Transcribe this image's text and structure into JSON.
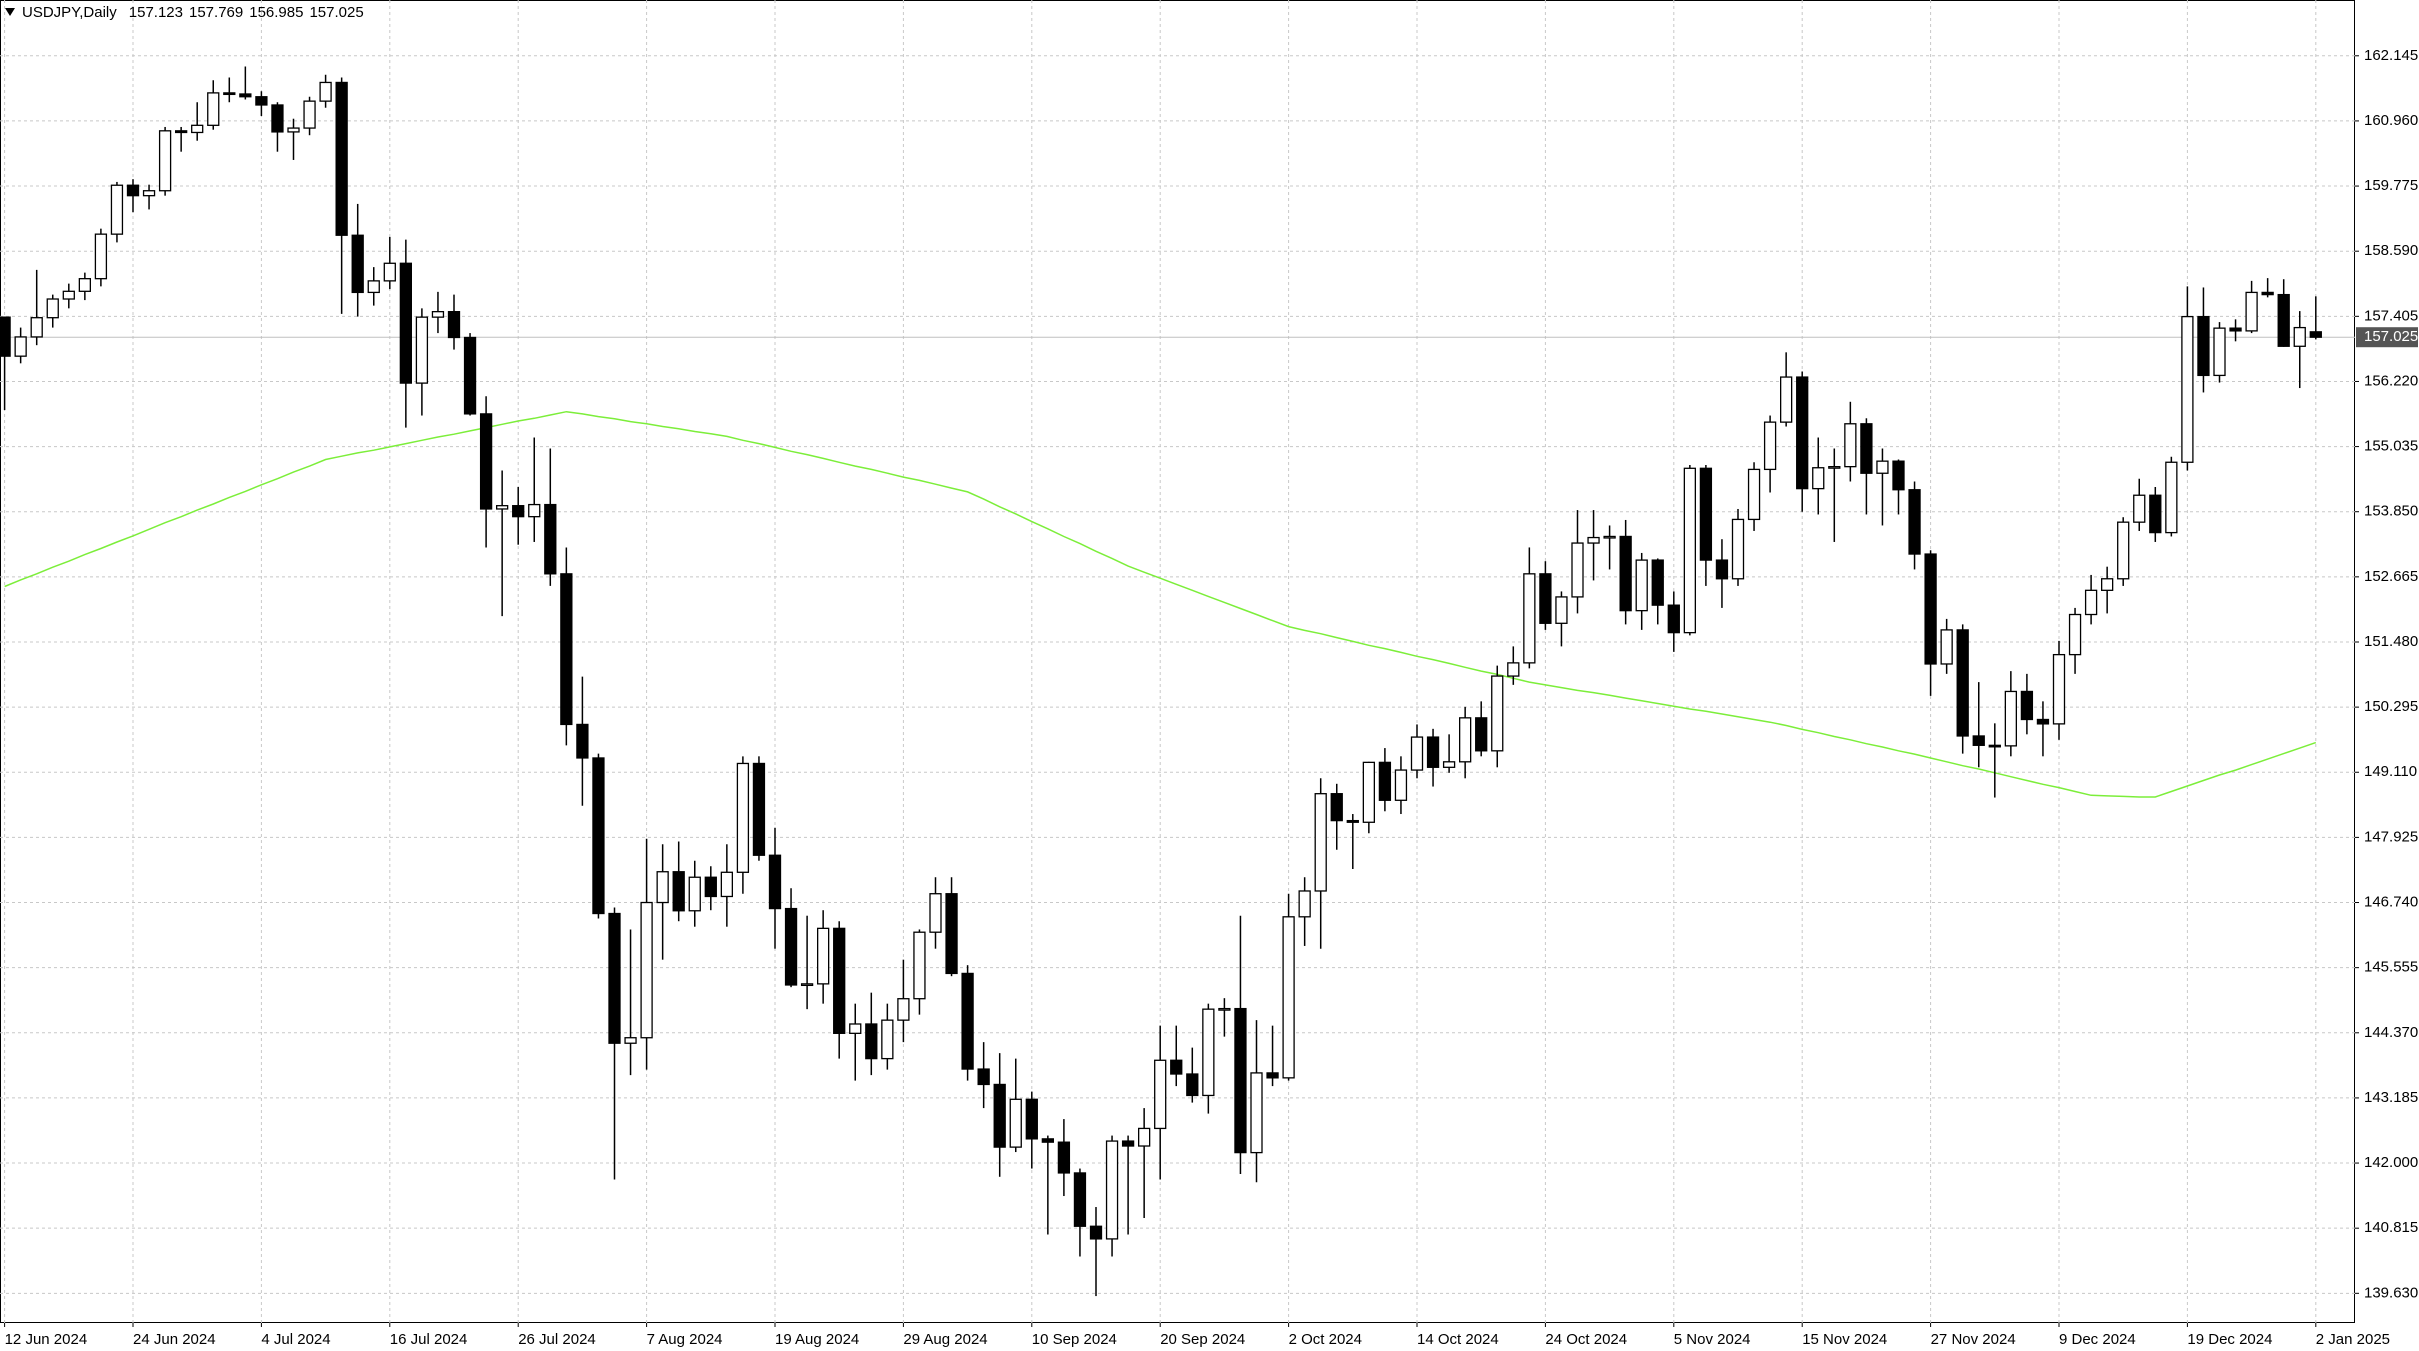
{
  "chart_data": {
    "type": "candlestick",
    "title": "USDJPY,Daily",
    "x": [
      "12 Jun 2024",
      null,
      null,
      null,
      null,
      null,
      null,
      null,
      "24 Jun 2024",
      null,
      null,
      null,
      null,
      null,
      null,
      null,
      "4 Jul 2024",
      null,
      null,
      null,
      null,
      null,
      null,
      null,
      "16 Jul 2024",
      null,
      null,
      null,
      null,
      null,
      null,
      null,
      "26 Jul 2024",
      null,
      null,
      null,
      null,
      null,
      null,
      null,
      "7 Aug 2024",
      null,
      null,
      null,
      null,
      null,
      null,
      null,
      "19 Aug 2024",
      null,
      null,
      null,
      null,
      null,
      null,
      null,
      "29 Aug 2024",
      null,
      null,
      null,
      null,
      null,
      null,
      null,
      "10 Sep 2024",
      null,
      null,
      null,
      null,
      null,
      null,
      null,
      "20 Sep 2024",
      null,
      null,
      null,
      null,
      null,
      null,
      null,
      "2 Oct 2024",
      null,
      null,
      null,
      null,
      null,
      null,
      null,
      "14 Oct 2024",
      null,
      null,
      null,
      null,
      null,
      null,
      null,
      "24 Oct 2024",
      null,
      null,
      null,
      null,
      null,
      null,
      null,
      "5 Nov 2024",
      null,
      null,
      null,
      null,
      null,
      null,
      null,
      "15 Nov 2024",
      null,
      null,
      null,
      null,
      null,
      null,
      null,
      "27 Nov 2024",
      null,
      null,
      null,
      null,
      null,
      null,
      null,
      "9 Dec 2024",
      null,
      null,
      null,
      null,
      null,
      null,
      null,
      "19 Dec 2024",
      null,
      null,
      null,
      null,
      null,
      null,
      null,
      "2 Jan 2025"
    ],
    "open": [
      157.39,
      156.68,
      157.03,
      157.38,
      157.72,
      157.86,
      158.09,
      158.9,
      159.79,
      159.6,
      159.69,
      160.78,
      160.75,
      160.88,
      161.47,
      161.45,
      161.4,
      161.25,
      160.76,
      160.83,
      161.32,
      161.66,
      158.88,
      157.84,
      158.05,
      158.37,
      156.19,
      157.39,
      157.49,
      157.02,
      155.63,
      153.9,
      153.96,
      153.76,
      153.98,
      152.72,
      149.98,
      149.37,
      146.54,
      144.18,
      144.28,
      146.74,
      147.3,
      146.59,
      147.2,
      146.85,
      147.29,
      149.27,
      147.6,
      146.63,
      145.24,
      145.26,
      146.27,
      144.36,
      144.53,
      143.9,
      144.6,
      144.99,
      146.2,
      146.9,
      145.45,
      143.71,
      143.43,
      142.29,
      143.16,
      142.44,
      142.38,
      141.82,
      140.85,
      140.62,
      142.4,
      142.31,
      142.63,
      143.87,
      143.62,
      143.23,
      144.8,
      144.81,
      142.19,
      143.64,
      143.55,
      146.48,
      146.95,
      148.72,
      148.23,
      148.2,
      149.29,
      148.6,
      149.15,
      149.75,
      149.2,
      149.3,
      150.1,
      149.5,
      150.86,
      151.1,
      152.72,
      151.82,
      152.3,
      153.28,
      153.38,
      153.4,
      152.05,
      152.97,
      152.15,
      151.65,
      154.64,
      152.97,
      152.63,
      153.71,
      154.62,
      155.48,
      156.3,
      154.27,
      154.65,
      154.67,
      155.45,
      154.55,
      154.77,
      154.25,
      153.08,
      151.08,
      151.7,
      149.77,
      149.6,
      149.59,
      150.58,
      150.07,
      149.99,
      151.25,
      151.98,
      152.42,
      152.63,
      153.66,
      154.15,
      153.47,
      154.75,
      157.4,
      156.33,
      157.19,
      157.14,
      157.84,
      157.8,
      156.86,
      157.123
    ],
    "high": [
      157.4,
      157.2,
      158.25,
      157.8,
      158.0,
      158.2,
      159.0,
      159.85,
      159.9,
      159.8,
      160.85,
      160.85,
      161.3,
      161.7,
      161.75,
      161.95,
      161.5,
      161.3,
      161.0,
      161.4,
      161.8,
      161.75,
      159.45,
      158.3,
      158.85,
      158.8,
      157.55,
      157.85,
      157.8,
      157.1,
      155.95,
      154.6,
      154.3,
      155.2,
      155.0,
      153.2,
      150.85,
      149.45,
      146.65,
      146.25,
      147.9,
      147.8,
      147.85,
      147.5,
      147.4,
      147.8,
      149.4,
      149.4,
      148.1,
      147.0,
      146.5,
      146.6,
      146.4,
      144.9,
      145.1,
      144.9,
      145.7,
      146.25,
      147.2,
      147.2,
      145.6,
      144.2,
      144.0,
      143.9,
      143.3,
      142.5,
      142.8,
      141.9,
      141.2,
      142.5,
      142.5,
      143.0,
      144.5,
      144.5,
      144.1,
      144.9,
      145.0,
      146.5,
      144.6,
      144.5,
      146.9,
      147.2,
      149.0,
      148.9,
      148.35,
      149.3,
      149.55,
      149.4,
      149.98,
      149.9,
      149.8,
      150.3,
      150.4,
      151.05,
      151.4,
      153.2,
      152.95,
      152.4,
      153.88,
      153.88,
      153.6,
      153.7,
      153.1,
      153.0,
      152.4,
      154.7,
      154.7,
      153.35,
      153.9,
      154.75,
      155.6,
      156.75,
      156.4,
      155.2,
      155.0,
      155.85,
      155.55,
      155.0,
      154.8,
      154.4,
      153.15,
      151.9,
      151.8,
      150.75,
      150.0,
      150.95,
      150.9,
      150.4,
      151.5,
      152.1,
      152.7,
      152.85,
      153.75,
      154.45,
      154.3,
      154.85,
      157.95,
      157.93,
      157.3,
      157.35,
      158.05,
      158.1,
      158.08,
      157.5,
      157.769
    ],
    "low": [
      155.7,
      156.55,
      156.88,
      157.2,
      157.55,
      157.7,
      157.95,
      158.75,
      159.3,
      159.35,
      159.6,
      160.4,
      160.6,
      160.8,
      161.3,
      161.35,
      161.05,
      160.4,
      160.25,
      160.7,
      161.2,
      157.45,
      157.4,
      157.6,
      157.9,
      155.38,
      155.6,
      157.1,
      156.8,
      155.6,
      153.2,
      151.95,
      153.25,
      153.3,
      152.5,
      149.6,
      148.5,
      146.45,
      141.7,
      143.6,
      143.7,
      145.7,
      146.4,
      146.3,
      146.6,
      146.3,
      146.9,
      147.5,
      145.9,
      145.2,
      144.8,
      144.9,
      143.9,
      143.5,
      143.6,
      143.7,
      144.2,
      144.7,
      145.9,
      145.4,
      143.5,
      143.0,
      141.75,
      142.2,
      141.9,
      140.7,
      141.4,
      140.3,
      139.58,
      140.3,
      140.7,
      141.0,
      141.7,
      143.4,
      143.1,
      142.9,
      144.3,
      141.8,
      141.65,
      143.4,
      143.5,
      145.95,
      145.9,
      147.7,
      147.35,
      148.0,
      148.4,
      148.35,
      149.0,
      148.85,
      149.1,
      149.0,
      149.4,
      149.2,
      150.7,
      151.0,
      151.7,
      151.4,
      152.0,
      152.6,
      152.8,
      151.8,
      151.7,
      151.8,
      151.3,
      151.6,
      152.5,
      152.1,
      152.5,
      153.5,
      154.2,
      155.4,
      153.85,
      153.8,
      153.3,
      154.4,
      153.8,
      153.6,
      153.8,
      152.8,
      150.5,
      150.9,
      149.45,
      149.2,
      148.65,
      149.4,
      149.8,
      149.4,
      149.7,
      150.9,
      151.8,
      152.0,
      152.5,
      153.5,
      153.3,
      153.4,
      154.6,
      156.02,
      156.2,
      156.95,
      157.1,
      157.75,
      156.85,
      156.1,
      156.985
    ],
    "close": [
      156.68,
      157.03,
      157.38,
      157.72,
      157.86,
      158.09,
      158.9,
      159.79,
      159.6,
      159.69,
      160.78,
      160.75,
      160.88,
      161.47,
      161.45,
      161.4,
      161.25,
      160.76,
      160.83,
      161.32,
      161.66,
      158.88,
      157.84,
      158.05,
      158.37,
      156.19,
      157.39,
      157.49,
      157.02,
      155.63,
      153.9,
      153.96,
      153.76,
      153.98,
      152.72,
      149.98,
      149.37,
      146.54,
      144.18,
      144.28,
      146.74,
      147.3,
      146.59,
      147.2,
      146.85,
      147.29,
      149.27,
      147.6,
      146.63,
      145.24,
      145.26,
      146.27,
      144.36,
      144.53,
      143.9,
      144.6,
      144.99,
      146.2,
      146.9,
      145.45,
      143.71,
      143.43,
      142.29,
      143.16,
      142.44,
      142.38,
      141.82,
      140.85,
      140.62,
      142.4,
      142.31,
      142.63,
      143.87,
      143.62,
      143.23,
      144.8,
      144.81,
      142.19,
      143.64,
      143.55,
      146.48,
      146.95,
      148.72,
      148.23,
      148.2,
      149.29,
      148.6,
      149.15,
      149.75,
      149.2,
      149.3,
      150.1,
      149.5,
      150.86,
      151.1,
      152.72,
      151.82,
      152.3,
      153.28,
      153.38,
      153.4,
      152.05,
      152.97,
      152.15,
      151.65,
      154.64,
      152.97,
      152.63,
      153.71,
      154.62,
      155.48,
      156.3,
      154.27,
      154.65,
      154.67,
      155.45,
      154.55,
      154.77,
      154.25,
      153.08,
      151.08,
      151.7,
      149.77,
      149.6,
      149.59,
      150.58,
      150.07,
      149.99,
      151.25,
      151.98,
      152.42,
      152.63,
      153.66,
      154.15,
      153.47,
      154.75,
      157.4,
      156.33,
      157.19,
      157.14,
      157.84,
      157.8,
      156.86,
      157.2,
      157.025
    ],
    "up_color": "#ffffff",
    "down_color": "#000000",
    "candle_outline": "#000000",
    "overlay": {
      "color": "#7cee3a",
      "values": [
        152.49,
        152.61,
        152.72,
        152.84,
        152.95,
        153.07,
        153.18,
        153.3,
        153.41,
        153.53,
        153.65,
        153.76,
        153.88,
        153.99,
        154.11,
        154.22,
        154.34,
        154.45,
        154.57,
        154.68,
        154.8,
        154.86,
        154.92,
        154.97,
        155.03,
        155.09,
        155.15,
        155.21,
        155.26,
        155.32,
        155.38,
        155.44,
        155.5,
        155.55,
        155.61,
        155.67,
        155.63,
        155.58,
        155.54,
        155.49,
        155.45,
        155.4,
        155.36,
        155.31,
        155.27,
        155.22,
        155.15,
        155.09,
        155.02,
        154.95,
        154.89,
        154.82,
        154.75,
        154.68,
        154.62,
        154.55,
        154.48,
        154.42,
        154.35,
        154.28,
        154.21,
        154.08,
        153.94,
        153.81,
        153.67,
        153.54,
        153.4,
        153.27,
        153.13,
        153.0,
        152.86,
        152.75,
        152.64,
        152.53,
        152.42,
        152.31,
        152.2,
        152.09,
        151.98,
        151.87,
        151.76,
        151.69,
        151.63,
        151.56,
        151.49,
        151.42,
        151.36,
        151.29,
        151.22,
        151.16,
        151.09,
        151.02,
        150.95,
        150.89,
        150.82,
        150.75,
        150.7,
        150.65,
        150.6,
        150.56,
        150.51,
        150.46,
        150.41,
        150.36,
        150.31,
        150.26,
        150.22,
        150.17,
        150.12,
        150.07,
        150.02,
        149.96,
        149.89,
        149.83,
        149.76,
        149.7,
        149.63,
        149.57,
        149.5,
        149.44,
        149.37,
        149.3,
        149.23,
        149.17,
        149.1,
        149.03,
        148.96,
        148.89,
        148.83,
        148.76,
        148.69,
        148.68,
        148.67,
        148.66,
        148.66,
        148.76,
        148.86,
        148.96,
        149.06,
        149.15,
        149.25,
        149.35,
        149.45,
        149.55,
        149.65
      ]
    },
    "last_price_line_color": "#c0c0c0",
    "last_price_box_color": "#555555",
    "ylim": [
      139.09,
      163.16
    ],
    "yticks": [
      {
        "value": 139.63,
        "label": "139.630"
      },
      {
        "value": 140.815,
        "label": "140.815"
      },
      {
        "value": 142,
        "label": "142.000"
      },
      {
        "value": 143.185,
        "label": "143.185"
      },
      {
        "value": 144.37,
        "label": "144.370"
      },
      {
        "value": 145.555,
        "label": "145.555"
      },
      {
        "value": 146.74,
        "label": "146.740"
      },
      {
        "value": 147.925,
        "label": "147.925"
      },
      {
        "value": 149.11,
        "label": "149.110"
      },
      {
        "value": 150.295,
        "label": "150.295"
      },
      {
        "value": 151.48,
        "label": "151.480"
      },
      {
        "value": 152.665,
        "label": "152.665"
      },
      {
        "value": 153.85,
        "label": "153.850"
      },
      {
        "value": 155.035,
        "label": "155.035"
      },
      {
        "value": 156.22,
        "label": "156.220"
      },
      {
        "value": 157.405,
        "label": "157.405"
      },
      {
        "value": 158.59,
        "label": "158.590"
      },
      {
        "value": 159.775,
        "label": "159.775"
      },
      {
        "value": 160.96,
        "label": "160.960"
      },
      {
        "value": 162.145,
        "label": "162.145"
      }
    ],
    "grid": true
  }
}
